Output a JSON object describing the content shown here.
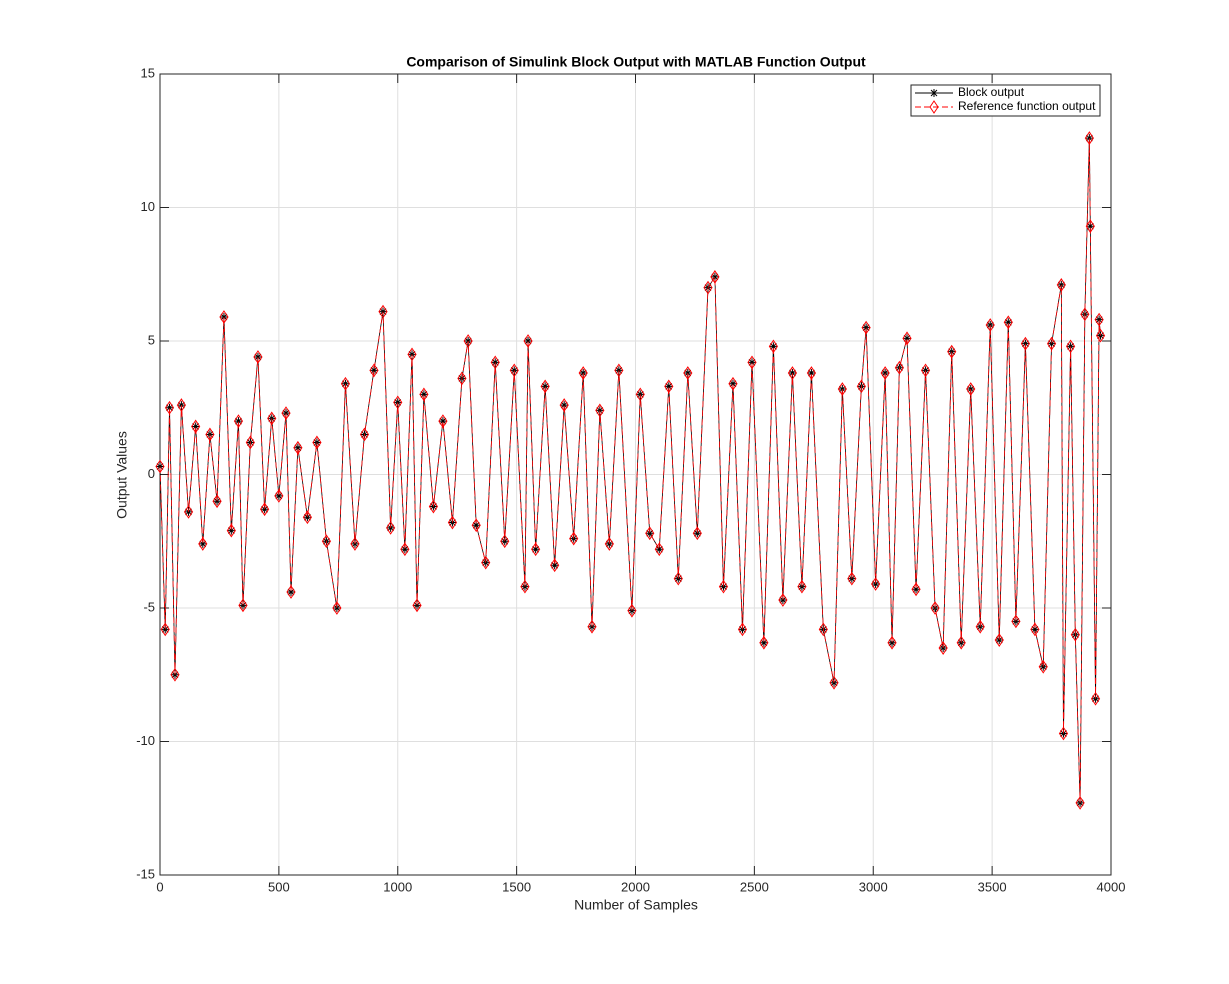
{
  "chart_data": {
    "type": "line",
    "title": "Comparison of Simulink Block Output with MATLAB Function Output",
    "x_label": "Number of Samples",
    "y_label": "Output Values",
    "x": [
      0,
      22,
      40,
      63,
      90,
      120,
      150,
      180,
      210,
      240,
      269,
      300,
      330,
      349,
      380,
      412,
      440,
      470,
      500,
      530,
      551,
      580,
      620,
      660,
      700,
      744,
      780,
      820,
      860,
      900,
      938,
      970,
      1000,
      1030,
      1060,
      1081,
      1110,
      1150,
      1190,
      1230,
      1270,
      1296,
      1330,
      1370,
      1410,
      1450,
      1490,
      1535,
      1548,
      1580,
      1620,
      1660,
      1700,
      1740,
      1780,
      1817,
      1850,
      1890,
      1930,
      1985,
      2020,
      2060,
      2100,
      2140,
      2180,
      2220,
      2260,
      2305,
      2334,
      2370,
      2410,
      2450,
      2490,
      2540,
      2580,
      2620,
      2660,
      2700,
      2740,
      2790,
      2835,
      2870,
      2910,
      2950,
      2970,
      3010,
      3050,
      3079,
      3110,
      3142,
      3180,
      3220,
      3260,
      3294,
      3330,
      3370,
      3410,
      3450,
      3492,
      3530,
      3568,
      3600,
      3640,
      3680,
      3715,
      3750,
      3791,
      3800,
      3830,
      3850,
      3870,
      3890,
      3909,
      3913,
      3935,
      3950,
      3956
    ],
    "series": [
      {
        "name": "Block output",
        "color": "#000000",
        "linestyle": "solid",
        "marker": "star",
        "values": [
          0.3,
          -5.8,
          2.5,
          -7.5,
          2.6,
          -1.4,
          1.8,
          -2.6,
          1.5,
          -1.0,
          5.9,
          -2.1,
          2.0,
          -4.9,
          1.2,
          4.4,
          -1.3,
          2.1,
          -0.8,
          2.3,
          -4.4,
          1.0,
          -1.6,
          1.2,
          -2.5,
          -5.0,
          3.4,
          -2.6,
          1.5,
          3.9,
          6.1,
          -2.0,
          2.7,
          -2.8,
          4.5,
          -4.9,
          3.0,
          -1.2,
          2.0,
          -1.8,
          3.6,
          5.0,
          -1.9,
          -3.3,
          4.2,
          -2.5,
          3.9,
          -4.2,
          5.0,
          -2.8,
          3.3,
          -3.4,
          2.6,
          -2.4,
          3.8,
          -5.7,
          2.4,
          -2.6,
          3.9,
          -5.1,
          3.0,
          -2.2,
          -2.8,
          3.3,
          -3.9,
          3.8,
          -2.2,
          7.0,
          7.4,
          -4.2,
          3.4,
          -5.8,
          4.2,
          -6.3,
          4.8,
          -4.7,
          3.8,
          -4.2,
          3.8,
          -5.8,
          -7.8,
          3.2,
          -3.9,
          3.3,
          5.5,
          -4.1,
          3.8,
          -6.3,
          4.0,
          5.1,
          -4.3,
          3.9,
          -5.0,
          -6.5,
          4.6,
          -6.3,
          3.2,
          -5.7,
          5.6,
          -6.2,
          5.7,
          -5.5,
          4.9,
          -5.8,
          -7.2,
          4.9,
          7.1,
          -9.7,
          4.8,
          -6.0,
          -12.3,
          6.0,
          12.6,
          9.3,
          -8.4,
          5.8,
          5.2
        ]
      },
      {
        "name": "Reference function output",
        "color": "#ff0000",
        "linestyle": "dashed",
        "marker": "diamond",
        "values": [
          0.3,
          -5.8,
          2.5,
          -7.5,
          2.6,
          -1.4,
          1.8,
          -2.6,
          1.5,
          -1.0,
          5.9,
          -2.1,
          2.0,
          -4.9,
          1.2,
          4.4,
          -1.3,
          2.1,
          -0.8,
          2.3,
          -4.4,
          1.0,
          -1.6,
          1.2,
          -2.5,
          -5.0,
          3.4,
          -2.6,
          1.5,
          3.9,
          6.1,
          -2.0,
          2.7,
          -2.8,
          4.5,
          -4.9,
          3.0,
          -1.2,
          2.0,
          -1.8,
          3.6,
          5.0,
          -1.9,
          -3.3,
          4.2,
          -2.5,
          3.9,
          -4.2,
          5.0,
          -2.8,
          3.3,
          -3.4,
          2.6,
          -2.4,
          3.8,
          -5.7,
          2.4,
          -2.6,
          3.9,
          -5.1,
          3.0,
          -2.2,
          -2.8,
          3.3,
          -3.9,
          3.8,
          -2.2,
          7.0,
          7.4,
          -4.2,
          3.4,
          -5.8,
          4.2,
          -6.3,
          4.8,
          -4.7,
          3.8,
          -4.2,
          3.8,
          -5.8,
          -7.8,
          3.2,
          -3.9,
          3.3,
          5.5,
          -4.1,
          3.8,
          -6.3,
          4.0,
          5.1,
          -4.3,
          3.9,
          -5.0,
          -6.5,
          4.6,
          -6.3,
          3.2,
          -5.7,
          5.6,
          -6.2,
          5.7,
          -5.5,
          4.9,
          -5.8,
          -7.2,
          4.9,
          7.1,
          -9.7,
          4.8,
          -6.0,
          -12.3,
          6.0,
          12.6,
          9.3,
          -8.4,
          5.8,
          5.2
        ]
      }
    ],
    "xlim": [
      0,
      4000
    ],
    "xticks": [
      0,
      500,
      1000,
      1500,
      2000,
      2500,
      3000,
      3500,
      4000
    ],
    "ylim": [
      -15,
      15
    ],
    "yticks": [
      -15,
      -10,
      -5,
      0,
      5,
      10,
      15
    ],
    "grid": true,
    "legend": "northeast"
  }
}
